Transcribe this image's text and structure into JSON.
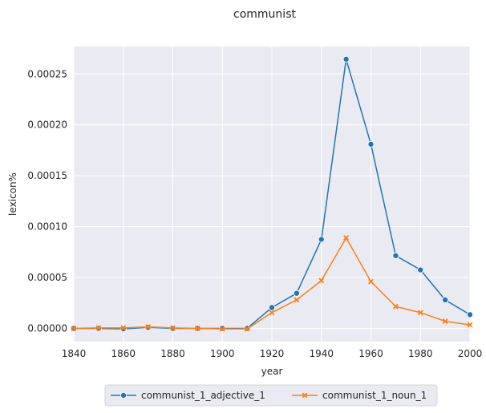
{
  "chart_data": {
    "type": "line",
    "title": "communist",
    "xlabel": "year",
    "ylabel": "lexicon%",
    "x": [
      1840,
      1850,
      1860,
      1870,
      1880,
      1890,
      1900,
      1910,
      1920,
      1930,
      1940,
      1950,
      1960,
      1970,
      1980,
      1990,
      2000
    ],
    "xlim": [
      1840,
      2000
    ],
    "ylim": [
      -1.3e-05,
      0.000277
    ],
    "xticks": [
      "1840",
      "1860",
      "1880",
      "1900",
      "1920",
      "1940",
      "1960",
      "1980",
      "2000"
    ],
    "yticks": [
      "0.00000",
      "0.00005",
      "0.00010",
      "0.00015",
      "0.00020",
      "0.00025"
    ],
    "grid": true,
    "legend_position": "bottom-center",
    "series": [
      {
        "name": "communist_1_adjective_1",
        "color": "#1f77b4",
        "marker": "circle",
        "values": [
          0.0,
          0.0,
          -5e-07,
          1e-06,
          0.0,
          0.0,
          0.0,
          0.0,
          2.05e-05,
          3.45e-05,
          8.75e-05,
          0.0002645,
          0.000181,
          7.15e-05,
          5.75e-05,
          2.8e-05,
          1.35e-05
        ]
      },
      {
        "name": "communist_1_noun_1",
        "color": "#ff7f0e",
        "marker": "x",
        "values": [
          0.0,
          5e-07,
          5e-07,
          1.5e-06,
          5e-07,
          0.0,
          -5e-07,
          -5e-07,
          1.55e-05,
          2.8e-05,
          4.7e-05,
          8.9e-05,
          4.6e-05,
          2.15e-05,
          1.55e-05,
          7e-06,
          3.5e-06
        ]
      }
    ]
  }
}
